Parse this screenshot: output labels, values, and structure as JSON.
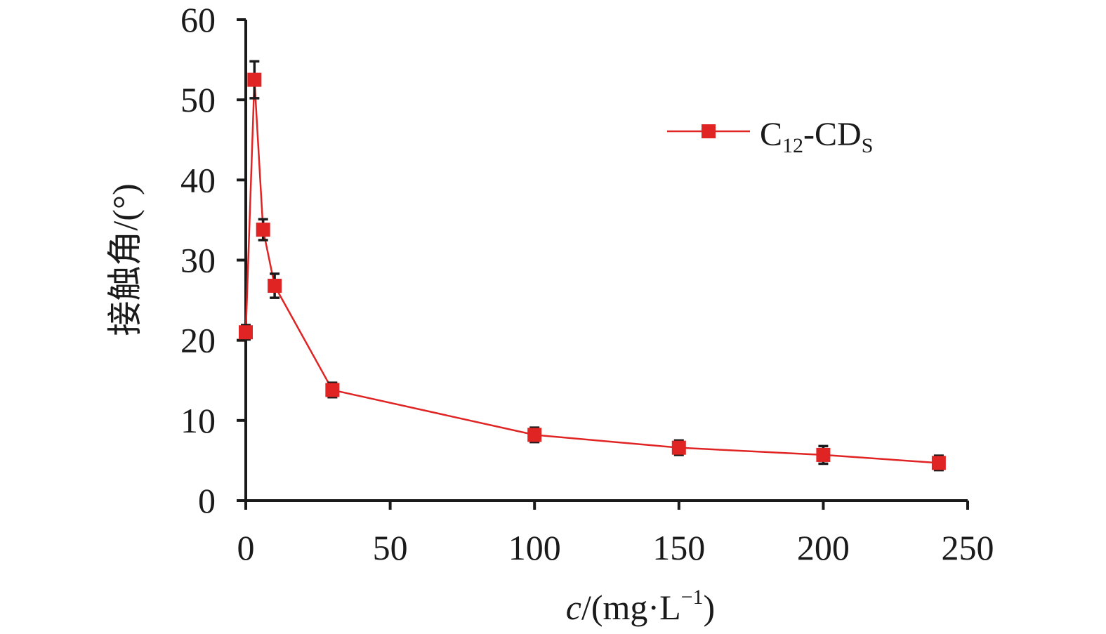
{
  "chart_data": {
    "type": "line",
    "x": [
      0,
      3,
      6,
      10,
      30,
      100,
      150,
      200,
      240
    ],
    "series": [
      {
        "name": "C12-CDS",
        "name_main": "C",
        "name_sub1": "12",
        "name_mid": "-CD",
        "name_sub2": "S",
        "values": [
          21.0,
          52.5,
          33.8,
          26.8,
          13.8,
          8.2,
          6.6,
          5.7,
          4.7
        ],
        "errors": [
          0.9,
          2.3,
          1.3,
          1.5,
          0.9,
          0.9,
          0.9,
          1.1,
          0.9
        ],
        "color": "#e02424",
        "marker": "square"
      }
    ],
    "xlim": [
      0,
      250
    ],
    "ylim": [
      0,
      60
    ],
    "xticks": [
      0,
      50,
      100,
      150,
      200,
      250
    ],
    "yticks": [
      0,
      10,
      20,
      30,
      40,
      50,
      60
    ],
    "xlabel": {
      "var": "c",
      "unit_open": "/(mg·L",
      "unit_sup": "−1",
      "unit_close": ")"
    },
    "ylabel": "接触角/(°)",
    "legend_position": "top-right",
    "grid": false
  },
  "colors": {
    "axis": "#1a1a1a",
    "series": "#e02424",
    "errorbar": "#1a1a1a"
  }
}
